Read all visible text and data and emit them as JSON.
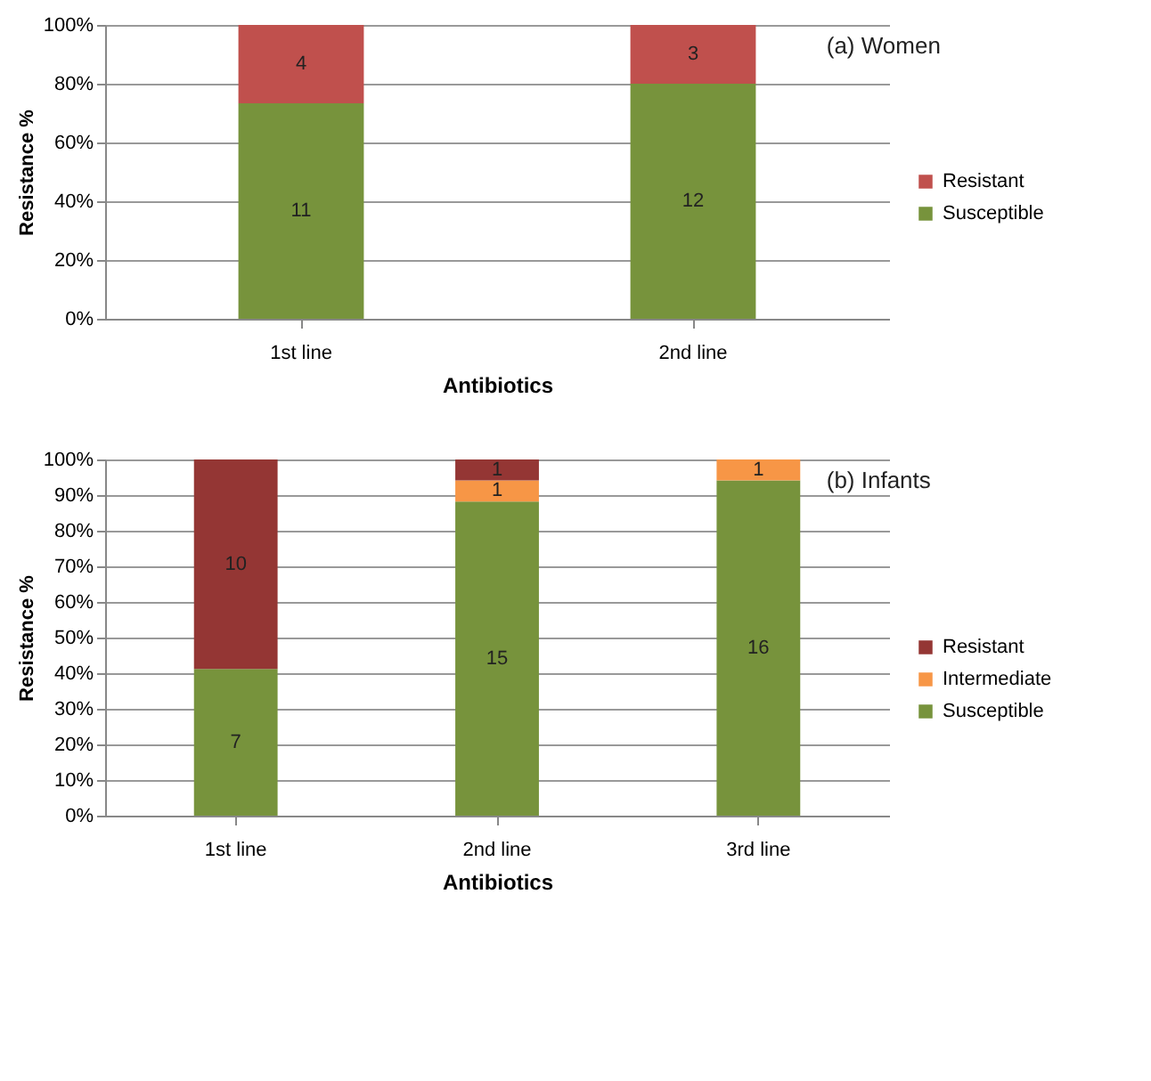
{
  "chart_data": [
    {
      "type": "bar",
      "title": "(a) Women",
      "xlabel": "Antibiotics",
      "ylabel": "Resistance %",
      "stacked": true,
      "categories": [
        "1st line",
        "2nd line"
      ],
      "series": [
        {
          "name": "Susceptible",
          "color": "#77933c",
          "values": [
            73.3,
            80.0
          ]
        },
        {
          "name": "Resistant",
          "color": "#c0504d",
          "values": [
            26.7,
            20.0
          ]
        }
      ],
      "annotations": [
        "11",
        "12",
        "4",
        "3"
      ],
      "ylim": [
        0,
        100
      ],
      "yticks": [
        {
          "value": 0,
          "label": "0%"
        },
        {
          "value": 20,
          "label": "20%"
        },
        {
          "value": 40,
          "label": "40%"
        },
        {
          "value": 60,
          "label": "60%"
        },
        {
          "value": 80,
          "label": "80%"
        },
        {
          "value": 100,
          "label": "100%"
        }
      ],
      "grid": "y",
      "legend": "right"
    },
    {
      "type": "bar",
      "title": "(b) Infants",
      "xlabel": "Antibiotics",
      "ylabel": "Resistance %",
      "stacked": true,
      "categories": [
        "1st line",
        "2nd line",
        "3rd line"
      ],
      "series": [
        {
          "name": "Susceptible",
          "color": "#77933c",
          "values": [
            41.2,
            88.2,
            94.1
          ]
        },
        {
          "name": "Intermediate",
          "color": "#f79646",
          "values": [
            null,
            5.9,
            5.9
          ]
        },
        {
          "name": "Resistant",
          "color": "#943634",
          "values": [
            58.8,
            5.9,
            null
          ]
        }
      ],
      "annotations": [
        "7",
        "15",
        "16",
        "1",
        "1",
        "10",
        "1"
      ],
      "ylim": [
        0,
        100
      ],
      "yticks": [
        {
          "value": 0,
          "label": "0%"
        },
        {
          "value": 10,
          "label": "10%"
        },
        {
          "value": 20,
          "label": "20%"
        },
        {
          "value": 30,
          "label": "30%"
        },
        {
          "value": 40,
          "label": "40%"
        },
        {
          "value": 50,
          "label": "50%"
        },
        {
          "value": 60,
          "label": "60%"
        },
        {
          "value": 70,
          "label": "70%"
        },
        {
          "value": 80,
          "label": "80%"
        },
        {
          "value": 90,
          "label": "90%"
        },
        {
          "value": 100,
          "label": "100%"
        }
      ],
      "grid": "y",
      "legend": "right"
    }
  ]
}
